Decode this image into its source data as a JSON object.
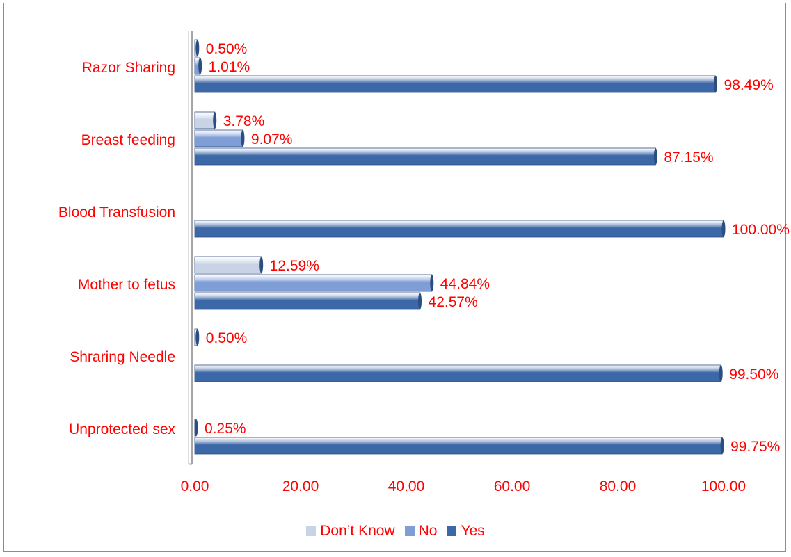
{
  "chart_data": {
    "type": "bar",
    "orientation": "horizontal",
    "categories": [
      "Razor Sharing",
      "Breast feeding",
      "Blood Transfusion",
      "Mother to fetus",
      "Shraring Needle",
      "Unprotected sex"
    ],
    "series": [
      {
        "name": "Don’t Know",
        "color": "#c9d3e6",
        "values": [
          0.5,
          3.78,
          null,
          12.59,
          0.5,
          null
        ],
        "labels": [
          "0.50%",
          "3.78%",
          "",
          "12.59%",
          "0.50%",
          ""
        ]
      },
      {
        "name": "No",
        "color": "#7f9ed6",
        "values": [
          1.01,
          9.07,
          null,
          44.84,
          null,
          0.25
        ],
        "labels": [
          "1.01%",
          "9.07%",
          "",
          "44.84%",
          "",
          "0.25%"
        ]
      },
      {
        "name": "Yes",
        "color": "#3d68a8",
        "values": [
          98.49,
          87.15,
          100.0,
          42.57,
          99.5,
          99.75
        ],
        "labels": [
          "98.49%",
          "87.15%",
          "100.00%",
          "42.57%",
          "99.50%",
          "99.75%"
        ]
      }
    ],
    "xlim": [
      0,
      100
    ],
    "xticks": [
      "0.00",
      "20.00",
      "40.00",
      "60.00",
      "80.00",
      "100.00"
    ],
    "grid": false,
    "legend_position": "bottom",
    "label_color": "#ff0000"
  }
}
